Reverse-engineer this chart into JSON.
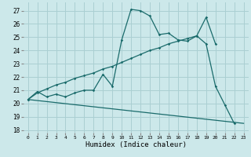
{
  "xlabel": "Humidex (Indice chaleur)",
  "bg_color": "#cce8ea",
  "grid_color": "#aacfd2",
  "line_color": "#1a6b6b",
  "xlim": [
    -0.5,
    23.5
  ],
  "ylim": [
    17.8,
    27.6
  ],
  "yticks": [
    18,
    19,
    20,
    21,
    22,
    23,
    24,
    25,
    26,
    27
  ],
  "xticks": [
    0,
    1,
    2,
    3,
    4,
    5,
    6,
    7,
    8,
    9,
    10,
    11,
    12,
    13,
    14,
    15,
    16,
    17,
    18,
    19,
    20,
    21,
    22,
    23
  ],
  "line1_x": [
    0,
    1,
    2,
    3,
    4,
    5,
    6,
    7,
    8,
    9,
    10,
    11,
    12,
    13,
    14,
    15,
    16,
    17,
    18,
    19,
    20,
    21,
    22
  ],
  "line1_y": [
    20.3,
    20.9,
    20.5,
    20.7,
    20.5,
    20.8,
    21.0,
    21.0,
    22.2,
    21.3,
    24.8,
    27.1,
    27.0,
    26.6,
    25.2,
    25.3,
    24.8,
    24.7,
    25.1,
    24.5,
    21.3,
    19.9,
    18.5
  ],
  "line2_x": [
    0,
    1,
    2,
    3,
    4,
    5,
    6,
    7,
    8,
    9,
    10,
    11,
    12,
    13,
    14,
    15,
    16,
    17,
    18,
    19,
    20
  ],
  "line2_y": [
    20.3,
    20.8,
    21.1,
    21.4,
    21.6,
    21.9,
    22.1,
    22.3,
    22.6,
    22.8,
    23.1,
    23.4,
    23.7,
    24.0,
    24.2,
    24.5,
    24.7,
    24.9,
    25.1,
    26.5,
    24.5
  ],
  "line3_x": [
    0,
    23
  ],
  "line3_y": [
    20.3,
    18.5
  ]
}
